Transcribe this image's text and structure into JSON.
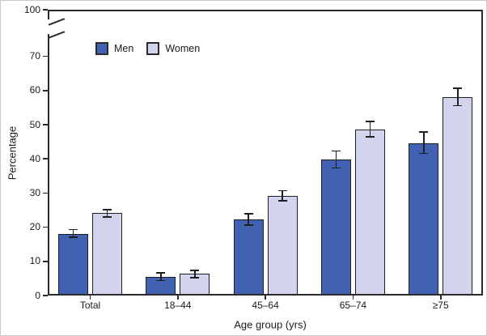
{
  "chart_data": {
    "type": "bar",
    "title": "",
    "xlabel": "Age group (yrs)",
    "ylabel": "Percentage",
    "categories": [
      "Total",
      "18–44",
      "45–64",
      "65–74",
      "≥75"
    ],
    "series": [
      {
        "name": "Men",
        "color": "#4161b3",
        "values": [
          18.1,
          5.5,
          22.3,
          39.8,
          44.6
        ],
        "ci_low": [
          17.0,
          4.4,
          20.7,
          37.3,
          41.6
        ],
        "ci_high": [
          19.3,
          6.6,
          23.9,
          42.3,
          47.9
        ]
      },
      {
        "name": "Women",
        "color": "#d2d4ed",
        "values": [
          24.1,
          6.3,
          29.2,
          48.7,
          58.0
        ],
        "ci_low": [
          23.0,
          5.2,
          27.7,
          46.4,
          55.6
        ],
        "ci_high": [
          25.2,
          7.4,
          30.7,
          51.0,
          60.6
        ]
      }
    ],
    "y_ticks": [
      0,
      10,
      20,
      30,
      40,
      50,
      60,
      70,
      100
    ],
    "ylim": [
      0,
      100
    ],
    "y_axis_break": {
      "between": [
        70,
        100
      ]
    },
    "error_bars": true,
    "grid": false,
    "legend_position": "top-left-inside",
    "bar_outline_color": "#1f1f1f",
    "frame_color": "#2b2b2b",
    "background_color": "#ffffff"
  }
}
